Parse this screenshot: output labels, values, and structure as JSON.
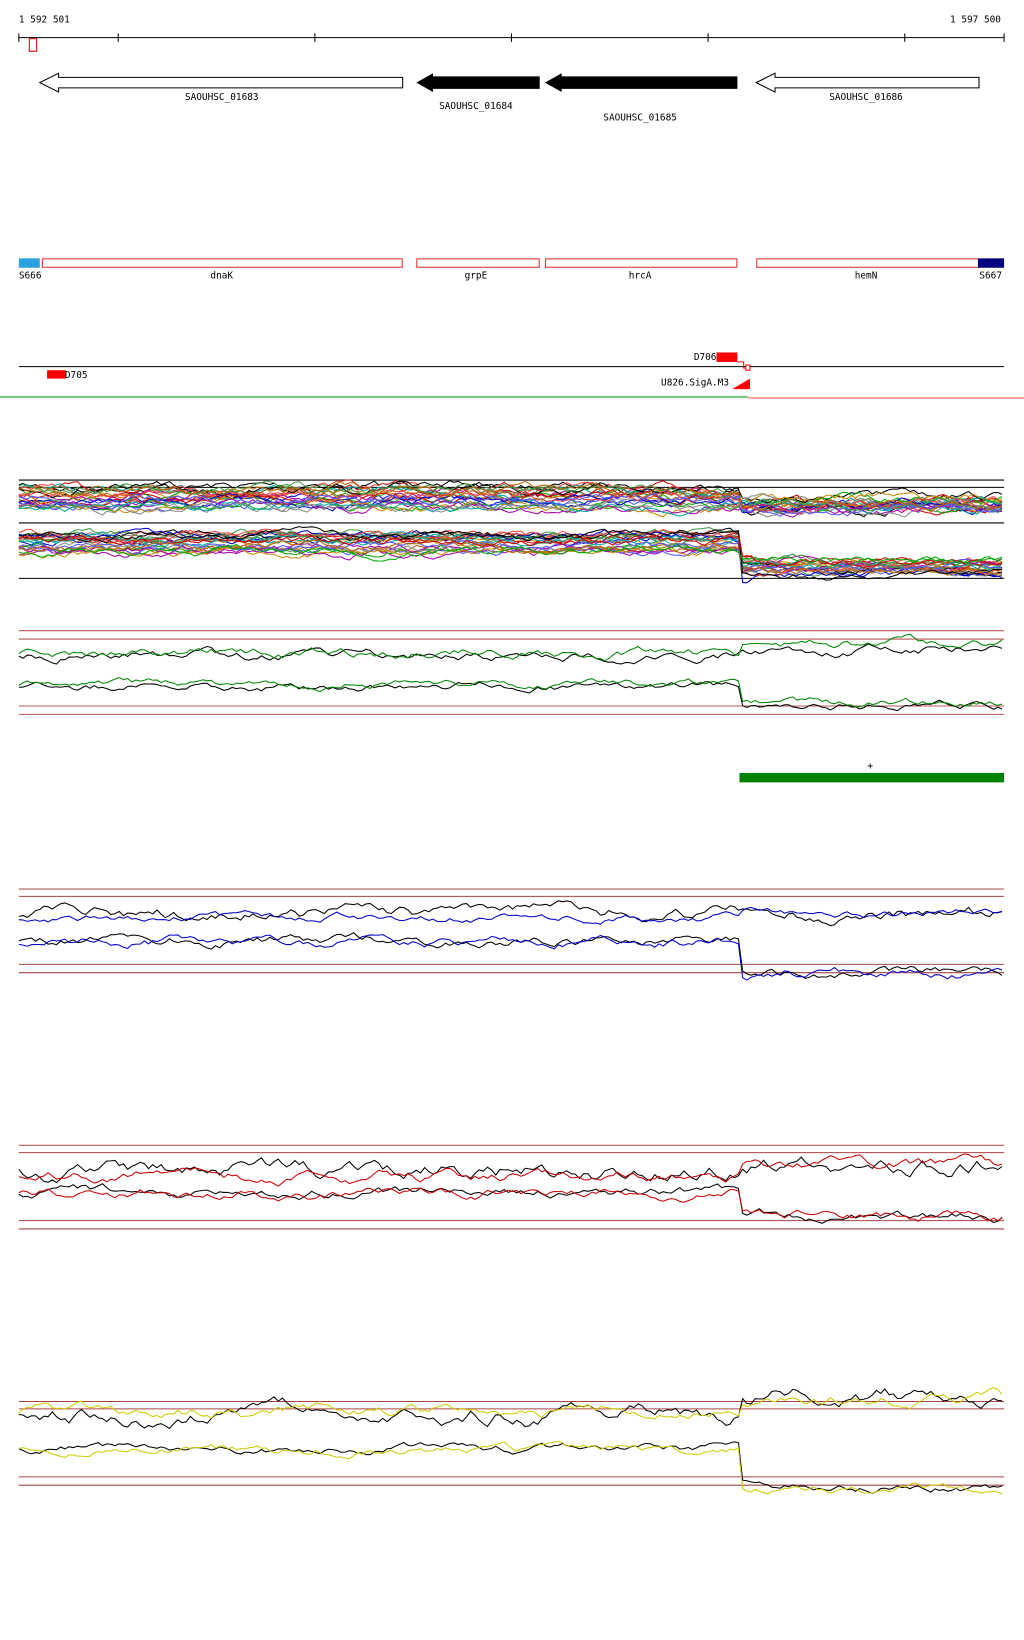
{
  "ruler": {
    "start": "1 592 501",
    "end": "1 597 500"
  },
  "genes": [
    {
      "label": "SAOUHSC_01683"
    },
    {
      "label": "SAOUHSC_01684"
    },
    {
      "label": "SAOUHSC_01685"
    },
    {
      "label": "SAOUHSC_01686"
    }
  ],
  "operons": [
    {
      "label": "S666"
    },
    {
      "label": "dnaK"
    },
    {
      "label": "grpE"
    },
    {
      "label": "hrcA"
    },
    {
      "label": "hemN"
    },
    {
      "label": "S667"
    }
  ],
  "features": [
    {
      "label": "D706"
    },
    {
      "label": "D705"
    },
    {
      "label": "U826.SigA.M3"
    }
  ],
  "strand": "+"
}
